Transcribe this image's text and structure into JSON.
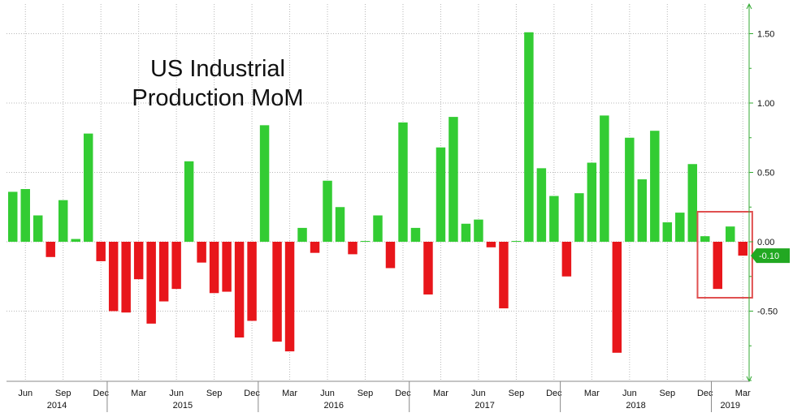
{
  "chart_data": {
    "type": "bar",
    "title": [
      "US Industrial",
      "Production MoM"
    ],
    "y_ticks": [
      "1.50",
      "1.00",
      "0.50",
      "0.00",
      "-0.50"
    ],
    "y_tick_values": [
      1.5,
      1.0,
      0.5,
      0.0,
      -0.5
    ],
    "ylim": [
      -1.0,
      1.75
    ],
    "grid": true,
    "last_value_label": "-0.10",
    "colors": {
      "positive": "#33cc33",
      "negative": "#e8161b",
      "axis": "#33aa33",
      "highlight_box": "#e05050"
    },
    "categories": [
      "2014-05",
      "2014-06",
      "2014-07",
      "2014-08",
      "2014-09",
      "2014-10",
      "2014-11",
      "2014-12",
      "2015-01",
      "2015-02",
      "2015-03",
      "2015-04",
      "2015-05",
      "2015-06",
      "2015-07",
      "2015-08",
      "2015-09",
      "2015-10",
      "2015-11",
      "2015-12",
      "2016-01",
      "2016-02",
      "2016-03",
      "2016-04",
      "2016-05",
      "2016-06",
      "2016-07",
      "2016-08",
      "2016-09",
      "2016-10",
      "2016-11",
      "2016-12",
      "2017-01",
      "2017-02",
      "2017-03",
      "2017-04",
      "2017-05",
      "2017-06",
      "2017-07",
      "2017-08",
      "2017-09",
      "2017-10",
      "2017-11",
      "2017-12",
      "2018-01",
      "2018-02",
      "2018-03",
      "2018-04",
      "2018-05",
      "2018-06",
      "2018-07",
      "2018-08",
      "2018-09",
      "2018-10",
      "2018-11",
      "2018-12",
      "2019-01",
      "2019-02",
      "2019-03"
    ],
    "values": [
      0.36,
      0.38,
      0.19,
      -0.11,
      0.3,
      0.02,
      0.78,
      -0.14,
      -0.5,
      -0.51,
      -0.27,
      -0.59,
      -0.43,
      -0.34,
      0.58,
      -0.15,
      -0.37,
      -0.36,
      -0.69,
      -0.57,
      0.84,
      -0.72,
      -0.79,
      0.1,
      -0.08,
      0.44,
      0.25,
      -0.09,
      0.0,
      0.19,
      -0.19,
      0.86,
      0.1,
      -0.38,
      0.68,
      0.9,
      0.13,
      0.16,
      -0.04,
      -0.48,
      0.0,
      1.51,
      0.53,
      0.33,
      -0.25,
      0.35,
      0.57,
      0.91,
      -0.8,
      0.75,
      0.45,
      0.8,
      0.14,
      0.21,
      0.56,
      0.04,
      -0.34,
      0.11,
      -0.1
    ],
    "x_month_labels": [
      {
        "index": 1,
        "label": "Jun"
      },
      {
        "index": 4,
        "label": "Sep"
      },
      {
        "index": 7,
        "label": "Dec"
      },
      {
        "index": 10,
        "label": "Mar"
      },
      {
        "index": 13,
        "label": "Jun"
      },
      {
        "index": 16,
        "label": "Sep"
      },
      {
        "index": 19,
        "label": "Dec"
      },
      {
        "index": 22,
        "label": "Mar"
      },
      {
        "index": 25,
        "label": "Jun"
      },
      {
        "index": 28,
        "label": "Sep"
      },
      {
        "index": 31,
        "label": "Dec"
      },
      {
        "index": 34,
        "label": "Mar"
      },
      {
        "index": 37,
        "label": "Jun"
      },
      {
        "index": 40,
        "label": "Sep"
      },
      {
        "index": 43,
        "label": "Dec"
      },
      {
        "index": 46,
        "label": "Mar"
      },
      {
        "index": 49,
        "label": "Jun"
      },
      {
        "index": 52,
        "label": "Sep"
      },
      {
        "index": 55,
        "label": "Dec"
      },
      {
        "index": 58,
        "label": "Mar"
      }
    ],
    "x_year_labels": [
      {
        "label": "2014",
        "start": 0,
        "end": 7
      },
      {
        "label": "2015",
        "start": 8,
        "end": 19
      },
      {
        "label": "2016",
        "start": 20,
        "end": 31
      },
      {
        "label": "2017",
        "start": 32,
        "end": 43
      },
      {
        "label": "2018",
        "start": 44,
        "end": 55
      },
      {
        "label": "2019",
        "start": 56,
        "end": 58
      }
    ],
    "highlight_range": {
      "start": 55,
      "end": 58
    }
  }
}
